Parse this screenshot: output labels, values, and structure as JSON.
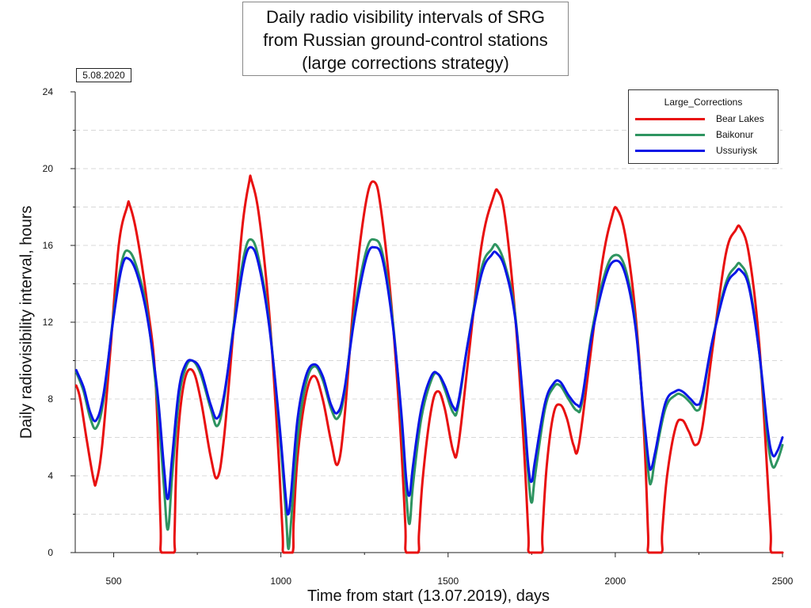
{
  "chart_data": {
    "type": "line",
    "title_lines": [
      "Daily radio visibility intervals of SRG",
      "from Russian ground-control stations",
      "(large corrections strategy)"
    ],
    "date_label": "5.08.2020",
    "xlabel": "Time from start (13.07.2019), days",
    "ylabel": "Daily radiovisibility interval, hours",
    "xlim": [
      385,
      2500
    ],
    "ylim": [
      0,
      24
    ],
    "xticks": [
      500,
      1000,
      1500,
      2000,
      2500
    ],
    "yticks": [
      0,
      4,
      8,
      12,
      16,
      20,
      24
    ],
    "grid": "horizontal dashed",
    "legend_title": "Large_Corrections",
    "legend_position": "top-right",
    "series": [
      {
        "name": "Bear Lakes",
        "color": "#e81010",
        "points": [
          [
            388,
            8.7
          ],
          [
            400,
            8.0
          ],
          [
            420,
            5.8
          ],
          [
            440,
            3.8
          ],
          [
            448,
            3.7
          ],
          [
            465,
            5.5
          ],
          [
            490,
            10.5
          ],
          [
            515,
            16.0
          ],
          [
            540,
            18.0
          ],
          [
            548,
            18.1
          ],
          [
            570,
            16.5
          ],
          [
            600,
            13.0
          ],
          [
            625,
            9.0
          ],
          [
            640,
            1.5
          ],
          [
            643,
            0
          ],
          [
            680,
            0
          ],
          [
            682,
            1.0
          ],
          [
            690,
            5.5
          ],
          [
            710,
            8.8
          ],
          [
            735,
            9.5
          ],
          [
            760,
            8.0
          ],
          [
            790,
            5.0
          ],
          [
            810,
            3.9
          ],
          [
            830,
            6.0
          ],
          [
            860,
            12.0
          ],
          [
            885,
            17.0
          ],
          [
            905,
            19.3
          ],
          [
            912,
            19.4
          ],
          [
            935,
            17.5
          ],
          [
            965,
            12.5
          ],
          [
            990,
            6.0
          ],
          [
            1005,
            1.0
          ],
          [
            1008,
            0
          ],
          [
            1035,
            0
          ],
          [
            1038,
            1.5
          ],
          [
            1050,
            5.0
          ],
          [
            1075,
            8.2
          ],
          [
            1100,
            9.2
          ],
          [
            1125,
            8.0
          ],
          [
            1150,
            5.8
          ],
          [
            1170,
            4.6
          ],
          [
            1190,
            7.0
          ],
          [
            1220,
            13.5
          ],
          [
            1255,
            18.3
          ],
          [
            1280,
            19.3
          ],
          [
            1300,
            17.8
          ],
          [
            1330,
            13.0
          ],
          [
            1355,
            7.0
          ],
          [
            1372,
            1.5
          ],
          [
            1375,
            0
          ],
          [
            1410,
            0
          ],
          [
            1413,
            1.0
          ],
          [
            1425,
            4.0
          ],
          [
            1450,
            7.5
          ],
          [
            1470,
            8.4
          ],
          [
            1490,
            7.5
          ],
          [
            1515,
            5.3
          ],
          [
            1530,
            5.5
          ],
          [
            1560,
            10.0
          ],
          [
            1600,
            16.0
          ],
          [
            1635,
            18.5
          ],
          [
            1650,
            18.8
          ],
          [
            1670,
            17.5
          ],
          [
            1700,
            12.5
          ],
          [
            1725,
            6.0
          ],
          [
            1740,
            1.0
          ],
          [
            1743,
            0
          ],
          [
            1780,
            0
          ],
          [
            1782,
            1.0
          ],
          [
            1795,
            4.5
          ],
          [
            1815,
            7.2
          ],
          [
            1835,
            7.7
          ],
          [
            1855,
            7.0
          ],
          [
            1875,
            5.6
          ],
          [
            1890,
            5.5
          ],
          [
            1920,
            9.5
          ],
          [
            1960,
            15.0
          ],
          [
            1990,
            17.5
          ],
          [
            2005,
            17.9
          ],
          [
            2030,
            16.5
          ],
          [
            2060,
            12.5
          ],
          [
            2085,
            6.5
          ],
          [
            2098,
            1.0
          ],
          [
            2100,
            0
          ],
          [
            2138,
            0
          ],
          [
            2140,
            1.0
          ],
          [
            2155,
            4.0
          ],
          [
            2180,
            6.5
          ],
          [
            2200,
            6.9
          ],
          [
            2220,
            6.3
          ],
          [
            2240,
            5.6
          ],
          [
            2260,
            6.5
          ],
          [
            2290,
            10.5
          ],
          [
            2330,
            15.5
          ],
          [
            2360,
            16.8
          ],
          [
            2375,
            16.9
          ],
          [
            2400,
            15.5
          ],
          [
            2430,
            11.0
          ],
          [
            2455,
            4.0
          ],
          [
            2465,
            1.0
          ],
          [
            2467,
            0
          ],
          [
            2500,
            0
          ]
        ]
      },
      {
        "name": "Baikonur",
        "color": "#2e9460",
        "points": [
          [
            388,
            9.4
          ],
          [
            410,
            8.4
          ],
          [
            430,
            7.0
          ],
          [
            448,
            6.5
          ],
          [
            470,
            8.0
          ],
          [
            500,
            12.5
          ],
          [
            525,
            15.2
          ],
          [
            545,
            15.7
          ],
          [
            570,
            14.8
          ],
          [
            600,
            12.5
          ],
          [
            630,
            8.0
          ],
          [
            650,
            3.5
          ],
          [
            662,
            1.2
          ],
          [
            675,
            4.0
          ],
          [
            695,
            8.0
          ],
          [
            715,
            9.6
          ],
          [
            735,
            10.0
          ],
          [
            760,
            9.3
          ],
          [
            790,
            7.5
          ],
          [
            810,
            6.6
          ],
          [
            830,
            8.0
          ],
          [
            860,
            12.0
          ],
          [
            890,
            15.5
          ],
          [
            912,
            16.3
          ],
          [
            935,
            15.2
          ],
          [
            965,
            12.0
          ],
          [
            995,
            6.5
          ],
          [
            1015,
            2.0
          ],
          [
            1022,
            0.2
          ],
          [
            1030,
            1.5
          ],
          [
            1050,
            6.0
          ],
          [
            1075,
            8.8
          ],
          [
            1100,
            9.7
          ],
          [
            1125,
            9.0
          ],
          [
            1150,
            7.5
          ],
          [
            1170,
            7.0
          ],
          [
            1190,
            8.3
          ],
          [
            1220,
            12.5
          ],
          [
            1255,
            15.7
          ],
          [
            1280,
            16.3
          ],
          [
            1305,
            15.5
          ],
          [
            1335,
            12.0
          ],
          [
            1360,
            7.0
          ],
          [
            1375,
            3.0
          ],
          [
            1385,
            1.5
          ],
          [
            1395,
            3.5
          ],
          [
            1420,
            7.0
          ],
          [
            1450,
            9.0
          ],
          [
            1470,
            9.3
          ],
          [
            1490,
            8.5
          ],
          [
            1515,
            7.3
          ],
          [
            1530,
            7.6
          ],
          [
            1560,
            11.0
          ],
          [
            1600,
            14.8
          ],
          [
            1630,
            15.8
          ],
          [
            1645,
            16.0
          ],
          [
            1670,
            15.0
          ],
          [
            1700,
            12.5
          ],
          [
            1725,
            7.5
          ],
          [
            1740,
            4.0
          ],
          [
            1750,
            2.6
          ],
          [
            1760,
            4.0
          ],
          [
            1790,
            7.5
          ],
          [
            1815,
            8.6
          ],
          [
            1835,
            8.7
          ],
          [
            1860,
            8.0
          ],
          [
            1885,
            7.4
          ],
          [
            1900,
            7.8
          ],
          [
            1930,
            11.5
          ],
          [
            1970,
            14.6
          ],
          [
            2000,
            15.5
          ],
          [
            2030,
            14.8
          ],
          [
            2060,
            12.0
          ],
          [
            2085,
            7.0
          ],
          [
            2100,
            4.0
          ],
          [
            2108,
            3.7
          ],
          [
            2120,
            5.0
          ],
          [
            2150,
            7.5
          ],
          [
            2180,
            8.2
          ],
          [
            2200,
            8.2
          ],
          [
            2225,
            7.8
          ],
          [
            2245,
            7.4
          ],
          [
            2260,
            8.0
          ],
          [
            2290,
            11.0
          ],
          [
            2330,
            14.0
          ],
          [
            2360,
            14.9
          ],
          [
            2375,
            15.0
          ],
          [
            2400,
            14.0
          ],
          [
            2430,
            10.5
          ],
          [
            2455,
            6.0
          ],
          [
            2470,
            4.5
          ],
          [
            2485,
            4.8
          ],
          [
            2500,
            5.6
          ]
        ]
      },
      {
        "name": "Ussuriysk",
        "color": "#0a16e6",
        "points": [
          [
            388,
            9.5
          ],
          [
            410,
            8.6
          ],
          [
            430,
            7.3
          ],
          [
            448,
            6.9
          ],
          [
            470,
            8.3
          ],
          [
            500,
            12.3
          ],
          [
            525,
            14.9
          ],
          [
            545,
            15.3
          ],
          [
            570,
            14.5
          ],
          [
            600,
            12.3
          ],
          [
            630,
            8.5
          ],
          [
            650,
            4.5
          ],
          [
            662,
            2.8
          ],
          [
            675,
            5.0
          ],
          [
            695,
            8.5
          ],
          [
            715,
            9.8
          ],
          [
            735,
            10.0
          ],
          [
            760,
            9.5
          ],
          [
            790,
            7.7
          ],
          [
            810,
            7.0
          ],
          [
            830,
            8.2
          ],
          [
            860,
            11.8
          ],
          [
            890,
            15.1
          ],
          [
            912,
            15.9
          ],
          [
            935,
            14.9
          ],
          [
            965,
            11.8
          ],
          [
            995,
            6.8
          ],
          [
            1015,
            2.8
          ],
          [
            1022,
            2.0
          ],
          [
            1030,
            3.0
          ],
          [
            1050,
            7.0
          ],
          [
            1075,
            9.2
          ],
          [
            1100,
            9.8
          ],
          [
            1125,
            9.2
          ],
          [
            1150,
            7.7
          ],
          [
            1170,
            7.3
          ],
          [
            1190,
            8.5
          ],
          [
            1220,
            12.2
          ],
          [
            1255,
            15.3
          ],
          [
            1280,
            15.9
          ],
          [
            1305,
            15.2
          ],
          [
            1335,
            11.8
          ],
          [
            1360,
            7.3
          ],
          [
            1375,
            3.8
          ],
          [
            1385,
            3.0
          ],
          [
            1395,
            4.5
          ],
          [
            1420,
            7.5
          ],
          [
            1450,
            9.2
          ],
          [
            1470,
            9.3
          ],
          [
            1490,
            8.7
          ],
          [
            1515,
            7.6
          ],
          [
            1530,
            7.8
          ],
          [
            1560,
            11.0
          ],
          [
            1600,
            14.5
          ],
          [
            1630,
            15.5
          ],
          [
            1645,
            15.6
          ],
          [
            1670,
            14.8
          ],
          [
            1700,
            12.3
          ],
          [
            1725,
            7.8
          ],
          [
            1740,
            4.5
          ],
          [
            1750,
            3.7
          ],
          [
            1760,
            4.8
          ],
          [
            1790,
            7.8
          ],
          [
            1815,
            8.8
          ],
          [
            1835,
            8.9
          ],
          [
            1860,
            8.2
          ],
          [
            1885,
            7.7
          ],
          [
            1900,
            8.0
          ],
          [
            1930,
            11.3
          ],
          [
            1970,
            14.3
          ],
          [
            2000,
            15.2
          ],
          [
            2030,
            14.5
          ],
          [
            2060,
            11.8
          ],
          [
            2085,
            7.2
          ],
          [
            2100,
            4.7
          ],
          [
            2108,
            4.4
          ],
          [
            2120,
            5.3
          ],
          [
            2150,
            7.8
          ],
          [
            2180,
            8.4
          ],
          [
            2200,
            8.4
          ],
          [
            2225,
            8.0
          ],
          [
            2245,
            7.7
          ],
          [
            2260,
            8.2
          ],
          [
            2290,
            11.0
          ],
          [
            2330,
            13.8
          ],
          [
            2360,
            14.6
          ],
          [
            2375,
            14.7
          ],
          [
            2400,
            13.8
          ],
          [
            2430,
            10.5
          ],
          [
            2455,
            6.5
          ],
          [
            2470,
            5.1
          ],
          [
            2485,
            5.3
          ],
          [
            2500,
            6.0
          ]
        ]
      }
    ]
  }
}
